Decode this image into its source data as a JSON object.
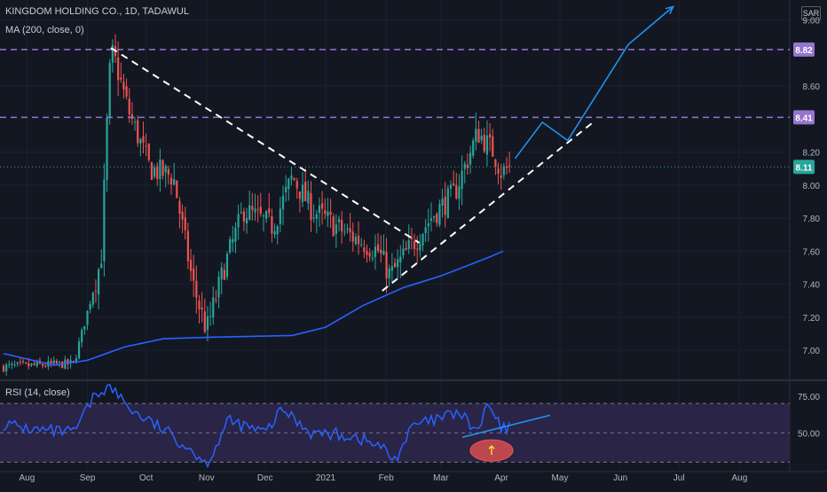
{
  "legend": {
    "title": "KINGDOM HOLDING CO., 1D, TADAWUL",
    "ma": "MA (200, close, 0)",
    "rsi": "RSI (14, close)"
  },
  "currency": "SAR",
  "colors": {
    "background": "#131722",
    "up": "#26a69a",
    "down": "#ef5350",
    "ma": "#2962ff",
    "level": "#9575cd",
    "rsi": "#2962ff",
    "rsi_band": "#2a2447",
    "price_tag": "#26a69a",
    "drawing": "#ffffff"
  },
  "chart_data": [
    {
      "type": "candlestick",
      "title": "KINGDOM HOLDING CO., 1D, TADAWUL",
      "ylim": [
        6.84,
        9.12
      ],
      "yticks": [
        "9.00",
        "8.60",
        "8.20",
        "8.00",
        "7.80",
        "7.60",
        "7.40",
        "7.20",
        "7.00"
      ],
      "price_labels": [
        {
          "value": "8.82",
          "kind": "level"
        },
        {
          "value": "8.41",
          "kind": "level"
        },
        {
          "value": "8.11",
          "kind": "last"
        }
      ],
      "x_labels": [
        "Aug",
        "Sep",
        "Oct",
        "Nov",
        "Dec",
        "2021",
        "Feb",
        "Mar",
        "Apr",
        "May",
        "Jun",
        "Jul",
        "Aug"
      ],
      "horizontal_levels": [
        8.82,
        8.41
      ],
      "last_price": 8.11,
      "ma_200": [
        {
          "date": "2020-07-20",
          "value": 6.98
        },
        {
          "date": "2020-08-15",
          "value": 6.91
        },
        {
          "date": "2020-09-01",
          "value": 6.94
        },
        {
          "date": "2020-09-20",
          "value": 7.02
        },
        {
          "date": "2020-10-10",
          "value": 7.07
        },
        {
          "date": "2020-11-05",
          "value": 7.08
        },
        {
          "date": "2020-12-15",
          "value": 7.09
        },
        {
          "date": "2021-01-01",
          "value": 7.14
        },
        {
          "date": "2021-01-20",
          "value": 7.27
        },
        {
          "date": "2021-02-10",
          "value": 7.38
        },
        {
          "date": "2021-03-01",
          "value": 7.45
        },
        {
          "date": "2021-03-25",
          "value": 7.56
        },
        {
          "date": "2021-04-02",
          "value": 7.6
        }
      ],
      "series_close": [
        {
          "date": "2020-07-20",
          "value": 6.9
        },
        {
          "date": "2020-08-25",
          "value": 6.92
        },
        {
          "date": "2020-09-08",
          "value": 7.55
        },
        {
          "date": "2020-09-12",
          "value": 8.65
        },
        {
          "date": "2020-09-14",
          "value": 8.8
        },
        {
          "date": "2020-09-22",
          "value": 8.45
        },
        {
          "date": "2020-10-03",
          "value": 8.1
        },
        {
          "date": "2020-10-15",
          "value": 8.05
        },
        {
          "date": "2020-10-25",
          "value": 7.4
        },
        {
          "date": "2020-11-01",
          "value": 7.12
        },
        {
          "date": "2020-11-10",
          "value": 7.5
        },
        {
          "date": "2020-11-20",
          "value": 7.85
        },
        {
          "date": "2020-12-05",
          "value": 7.75
        },
        {
          "date": "2020-12-15",
          "value": 8.05
        },
        {
          "date": "2020-12-25",
          "value": 7.85
        },
        {
          "date": "2021-01-10",
          "value": 7.72
        },
        {
          "date": "2021-01-28",
          "value": 7.6
        },
        {
          "date": "2021-02-03",
          "value": 7.45
        },
        {
          "date": "2021-02-12",
          "value": 7.6
        },
        {
          "date": "2021-02-25",
          "value": 7.82
        },
        {
          "date": "2021-03-08",
          "value": 7.95
        },
        {
          "date": "2021-03-20",
          "value": 8.32
        },
        {
          "date": "2021-03-28",
          "value": 8.2
        },
        {
          "date": "2021-04-01",
          "value": 8.08
        },
        {
          "date": "2021-04-06",
          "value": 8.11
        }
      ],
      "annotations": [
        {
          "type": "trendline",
          "style": "dashed",
          "from": {
            "date": "2020-09-13",
            "value": 8.83
          },
          "to": {
            "date": "2021-02-18",
            "value": 7.65
          }
        },
        {
          "type": "trendline",
          "style": "dashed",
          "from": {
            "date": "2021-01-30",
            "value": 7.36
          },
          "to": {
            "date": "2021-05-18",
            "value": 8.38
          }
        },
        {
          "type": "projection",
          "points": [
            {
              "date": "2021-04-08",
              "value": 8.16
            },
            {
              "date": "2021-04-22",
              "value": 8.38
            },
            {
              "date": "2021-05-05",
              "value": 8.27
            },
            {
              "date": "2021-06-05",
              "value": 8.85
            },
            {
              "date": "2021-06-28",
              "value": 9.08
            }
          ]
        }
      ]
    },
    {
      "type": "line",
      "title": "RSI (14, close)",
      "ylim": [
        26,
        84
      ],
      "yticks": [
        "75.00",
        "50.00"
      ],
      "band": [
        30,
        70
      ],
      "midline": 50,
      "series": [
        {
          "values": [
            {
              "date": "2020-07-20",
              "value": 56
            },
            {
              "date": "2020-08-05",
              "value": 52
            },
            {
              "date": "2020-08-25",
              "value": 50
            },
            {
              "date": "2020-09-05",
              "value": 76
            },
            {
              "date": "2020-09-12",
              "value": 82
            },
            {
              "date": "2020-09-25",
              "value": 64
            },
            {
              "date": "2020-10-10",
              "value": 52
            },
            {
              "date": "2020-10-25",
              "value": 38
            },
            {
              "date": "2020-11-01",
              "value": 28
            },
            {
              "date": "2020-11-12",
              "value": 58
            },
            {
              "date": "2020-12-01",
              "value": 50
            },
            {
              "date": "2020-12-10",
              "value": 66
            },
            {
              "date": "2020-12-25",
              "value": 50
            },
            {
              "date": "2021-01-15",
              "value": 48
            },
            {
              "date": "2021-01-30",
              "value": 40
            },
            {
              "date": "2021-02-05",
              "value": 31
            },
            {
              "date": "2021-02-15",
              "value": 55
            },
            {
              "date": "2021-02-25",
              "value": 58
            },
            {
              "date": "2021-03-10",
              "value": 64
            },
            {
              "date": "2021-03-20",
              "value": 50
            },
            {
              "date": "2021-03-25",
              "value": 70
            },
            {
              "date": "2021-04-01",
              "value": 52
            },
            {
              "date": "2021-04-06",
              "value": 54
            }
          ]
        }
      ],
      "annotations": [
        {
          "type": "trendline",
          "from": {
            "date": "2021-03-12",
            "value": 47
          },
          "to": {
            "date": "2021-04-26",
            "value": 62
          }
        },
        {
          "type": "ellipse",
          "label": "up arrow",
          "at": {
            "date": "2021-03-27",
            "value": 38
          }
        }
      ]
    }
  ]
}
